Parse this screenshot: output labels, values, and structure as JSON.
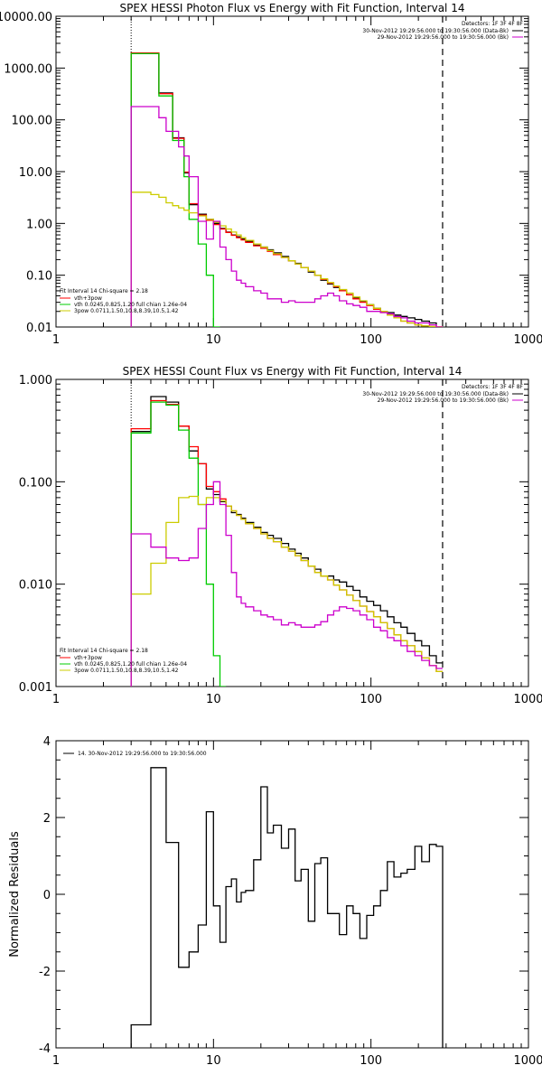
{
  "chart_data": [
    {
      "type": "line",
      "title": "SPEX HESSI Photon Flux vs Energy with Fit Function, Interval 14",
      "xscale": "log",
      "yscale": "log",
      "xlim": [
        1,
        1000
      ],
      "ylim": [
        0.01,
        10000
      ],
      "x_ticks": [
        "1",
        "10",
        "100",
        "1000"
      ],
      "y_ticks": [
        "0.01",
        "0.10",
        "1.00",
        "10.00",
        "100.00",
        "1000.00",
        "10000.00"
      ],
      "detectors": "Detectors: 1F 3F 4F 8F",
      "legend_top_right": [
        {
          "text": "30-Nov-2012 19:29:56.000 to 19:30:56.000 (Data-Bk)",
          "color": "#000000"
        },
        {
          "text": "29-Nov-2012 19:29:56.000 to 19:30:56.000 (Bk)",
          "color": "#cc00cc"
        }
      ],
      "legend_bottom_left_title": "Fit Interval 14   Chi-square = 2.18",
      "legend_bottom_left": [
        {
          "text": "vth+3pow",
          "color": "#ff0000"
        },
        {
          "text": "vth 0.0245,0.825,1.20  full chian 1.26e-04",
          "color": "#00cc00"
        },
        {
          "text": "3pow 0.0711,1.50,10.8,8.39,10.5,1.42",
          "color": "#cccc00"
        }
      ],
      "vlines": [
        3,
        285
      ],
      "bin_edges": [
        3.0,
        3.5,
        4.0,
        4.5,
        5.0,
        5.5,
        6.0,
        6.5,
        7.0,
        8.0,
        9.0,
        10.0,
        11.0,
        12.0,
        13.0,
        14.0,
        15.0,
        16.0,
        18.0,
        20.0,
        22.0,
        24.0,
        27.0,
        30.0,
        33.0,
        36.0,
        40.0,
        44.0,
        48.0,
        53.0,
        58.0,
        63.0,
        70.0,
        77.0,
        85.0,
        94.0,
        104.0,
        115.0,
        127.0,
        140.0,
        155.0,
        170.0,
        190.0,
        210.0,
        235.0,
        260.0,
        285.0
      ],
      "series": [
        {
          "name": "Data-Bk",
          "color": "#000000",
          "values": [
            1900,
            1900,
            1900,
            330,
            330,
            45,
            45,
            9.5,
            2.3,
            1.5,
            1.2,
            1.0,
            0.8,
            0.68,
            0.6,
            0.55,
            0.5,
            0.45,
            0.38,
            0.35,
            0.31,
            0.27,
            0.23,
            0.19,
            0.17,
            0.14,
            0.115,
            0.1,
            0.08,
            0.068,
            0.058,
            0.05,
            0.042,
            0.036,
            0.031,
            0.027,
            0.023,
            0.02,
            0.019,
            0.017,
            0.016,
            0.015,
            0.014,
            0.013,
            0.012,
            0.01
          ]
        },
        {
          "name": "vth+3pow",
          "color": "#ff0000",
          "values": [
            1950,
            1950,
            1950,
            320,
            320,
            44,
            44,
            9.8,
            2.4,
            1.45,
            1.15,
            0.95,
            0.78,
            0.67,
            0.59,
            0.53,
            0.48,
            0.43,
            0.37,
            0.33,
            0.29,
            0.25,
            0.22,
            0.19,
            0.165,
            0.14,
            0.12,
            0.1,
            0.083,
            0.07,
            0.06,
            0.05,
            0.042,
            0.035,
            0.03,
            0.026,
            0.022,
            0.019,
            0.017,
            0.015,
            0.013,
            0.012,
            0.011,
            0.0105,
            0.0102,
            0.0101
          ]
        },
        {
          "name": "vth",
          "color": "#00cc00",
          "values": [
            1900,
            1900,
            1900,
            290,
            290,
            40,
            40,
            8.0,
            1.2,
            0.4,
            0.1,
            0.01
          ]
        },
        {
          "name": "3pow",
          "color": "#cccc00",
          "values": [
            4.0,
            4.0,
            3.6,
            3.2,
            2.5,
            2.2,
            2.0,
            1.8,
            1.6,
            1.4,
            1.2,
            1.05,
            0.9,
            0.78,
            0.68,
            0.6,
            0.53,
            0.47,
            0.4,
            0.35,
            0.3,
            0.26,
            0.22,
            0.19,
            0.165,
            0.14,
            0.12,
            0.1,
            0.085,
            0.072,
            0.062,
            0.053,
            0.045,
            0.038,
            0.032,
            0.027,
            0.023,
            0.02,
            0.017,
            0.015,
            0.013,
            0.012,
            0.011,
            0.0105,
            0.0102,
            0.0101
          ]
        },
        {
          "name": "Bk",
          "color": "#cc00cc",
          "values": [
            180,
            180,
            180,
            110,
            60,
            60,
            30,
            20,
            8,
            1.1,
            0.5,
            1.1,
            0.35,
            0.2,
            0.12,
            0.08,
            0.07,
            0.06,
            0.05,
            0.045,
            0.035,
            0.035,
            0.03,
            0.032,
            0.03,
            0.03,
            0.03,
            0.035,
            0.04,
            0.045,
            0.04,
            0.032,
            0.028,
            0.026,
            0.024,
            0.02,
            0.02,
            0.019,
            0.018,
            0.016,
            0.015,
            0.013,
            0.012,
            0.012,
            0.011,
            0.01
          ]
        }
      ]
    },
    {
      "type": "line",
      "title": "SPEX HESSI Count Flux vs Energy with Fit Function, Interval 14",
      "xscale": "log",
      "yscale": "log",
      "xlim": [
        1,
        1000
      ],
      "ylim": [
        0.001,
        1.0
      ],
      "x_ticks": [
        "1",
        "10",
        "100",
        "1000"
      ],
      "y_ticks": [
        "0.001",
        "0.010",
        "0.100",
        "1.000"
      ],
      "detectors": "Detectors: 1F 3F 4F 8F",
      "legend_top_right": [
        {
          "text": "30-Nov-2012 19:29:56.000 to 19:30:56.000 (Data-Bk)",
          "color": "#000000"
        },
        {
          "text": "29-Nov-2012 19:29:56.000 to 19:30:56.000 (Bk)",
          "color": "#cc00cc"
        }
      ],
      "legend_bottom_left_title": "Fit Interval 14   Chi-square = 2.18",
      "legend_bottom_left": [
        {
          "text": "vth+3pow",
          "color": "#ff0000"
        },
        {
          "text": "vth 0.0245,0.825,1.20  full chian 1.26e-04",
          "color": "#00cc00"
        },
        {
          "text": "3pow 0.0711,1.50,10.8,8.39,10.5,1.42",
          "color": "#cccc00"
        }
      ],
      "vlines": [
        3,
        285
      ],
      "bin_edges": [
        3.0,
        4.0,
        5.0,
        6.0,
        7.0,
        8.0,
        9.0,
        10.0,
        11.0,
        12.0,
        13.0,
        14.0,
        15.0,
        16.0,
        18.0,
        20.0,
        22.0,
        24.0,
        27.0,
        30.0,
        33.0,
        36.0,
        40.0,
        44.0,
        48.0,
        53.0,
        58.0,
        63.0,
        70.0,
        77.0,
        85.0,
        94.0,
        104.0,
        115.0,
        127.0,
        140.0,
        155.0,
        170.0,
        190.0,
        210.0,
        235.0,
        260.0,
        285.0
      ],
      "series": [
        {
          "name": "Data-Bk",
          "color": "#000000",
          "values": [
            0.31,
            0.68,
            0.6,
            0.35,
            0.2,
            0.15,
            0.085,
            0.075,
            0.064,
            0.058,
            0.05,
            0.048,
            0.044,
            0.04,
            0.036,
            0.032,
            0.03,
            0.028,
            0.025,
            0.022,
            0.02,
            0.018,
            0.015,
            0.014,
            0.012,
            0.012,
            0.011,
            0.0105,
            0.0095,
            0.0087,
            0.0075,
            0.0068,
            0.0062,
            0.0055,
            0.0048,
            0.0042,
            0.0038,
            0.0033,
            0.0028,
            0.0025,
            0.002,
            0.0017
          ]
        },
        {
          "name": "vth+3pow",
          "color": "#ff0000",
          "values": [
            0.33,
            0.62,
            0.57,
            0.35,
            0.22,
            0.15,
            0.09,
            0.08,
            0.068,
            0.058,
            0.052,
            0.047,
            0.043,
            0.039,
            0.035,
            0.031,
            0.028,
            0.026,
            0.023,
            0.021,
            0.019,
            0.017,
            0.015,
            0.013,
            0.012,
            0.011,
            0.0098,
            0.0088,
            0.0078,
            0.0069,
            0.0061,
            0.0054,
            0.0048,
            0.0042,
            0.0037,
            0.0032,
            0.0028,
            0.0025,
            0.0022,
            0.0019,
            0.0016,
            0.0014
          ]
        },
        {
          "name": "vth",
          "color": "#00cc00",
          "values": [
            0.3,
            0.6,
            0.56,
            0.32,
            0.17,
            0.06,
            0.01,
            0.002,
            0.001
          ]
        },
        {
          "name": "3pow",
          "color": "#cccc00",
          "values": [
            0.008,
            0.016,
            0.04,
            0.07,
            0.072,
            0.06,
            0.07,
            0.07,
            0.065,
            0.058,
            0.052,
            0.047,
            0.043,
            0.039,
            0.035,
            0.031,
            0.028,
            0.026,
            0.023,
            0.021,
            0.019,
            0.017,
            0.015,
            0.013,
            0.012,
            0.011,
            0.0098,
            0.0088,
            0.0078,
            0.0069,
            0.0061,
            0.0054,
            0.0048,
            0.0042,
            0.0037,
            0.0032,
            0.0028,
            0.0025,
            0.0022,
            0.0019,
            0.0016,
            0.0014
          ]
        },
        {
          "name": "Bk",
          "color": "#cc00cc",
          "values": [
            0.031,
            0.023,
            0.018,
            0.017,
            0.018,
            0.035,
            0.06,
            0.1,
            0.06,
            0.03,
            0.013,
            0.0075,
            0.0065,
            0.006,
            0.0055,
            0.005,
            0.0048,
            0.0045,
            0.004,
            0.0042,
            0.004,
            0.0038,
            0.0038,
            0.004,
            0.0043,
            0.005,
            0.0055,
            0.006,
            0.0058,
            0.0055,
            0.005,
            0.0045,
            0.0038,
            0.0035,
            0.003,
            0.0028,
            0.0025,
            0.0022,
            0.002,
            0.0018,
            0.0016,
            0.0015
          ]
        }
      ]
    },
    {
      "type": "line",
      "title": "",
      "xscale": "log",
      "yscale": "linear",
      "xlim": [
        1,
        1000
      ],
      "ylim": [
        -4,
        4
      ],
      "x_ticks": [
        "1",
        "10",
        "100",
        "1000"
      ],
      "y_ticks": [
        "-4",
        "-2",
        "0",
        "2",
        "4"
      ],
      "ylabel": "Normalized Residuals",
      "legend_top_left": [
        {
          "text": "14. 30-Nov-2012 19:29:56.000 to 19:30:56.000",
          "color": "#000000"
        }
      ],
      "bin_edges": [
        3.0,
        4.0,
        5.0,
        6.0,
        7.0,
        8.0,
        9.0,
        10.0,
        11.0,
        12.0,
        13.0,
        14.0,
        15.0,
        16.0,
        18.0,
        20.0,
        22.0,
        24.0,
        27.0,
        30.0,
        33.0,
        36.0,
        40.0,
        44.0,
        48.0,
        53.0,
        58.0,
        63.0,
        70.0,
        77.0,
        85.0,
        94.0,
        104.0,
        115.0,
        127.0,
        140.0,
        155.0,
        170.0,
        190.0,
        210.0,
        235.0,
        260.0,
        285.0
      ],
      "series": [
        {
          "name": "Residuals",
          "color": "#000000",
          "values": [
            -3.4,
            3.3,
            1.35,
            -1.9,
            -1.5,
            -0.8,
            2.15,
            -0.3,
            -1.25,
            0.2,
            0.4,
            -0.2,
            0.05,
            0.1,
            0.9,
            2.8,
            1.6,
            1.8,
            1.2,
            1.7,
            0.35,
            0.65,
            -0.7,
            0.8,
            0.95,
            -0.5,
            -0.5,
            -1.05,
            -0.3,
            -0.5,
            -1.15,
            -0.55,
            -0.3,
            0.1,
            0.85,
            0.45,
            0.55,
            0.65,
            1.25,
            0.85,
            1.3,
            1.25
          ]
        }
      ]
    }
  ]
}
